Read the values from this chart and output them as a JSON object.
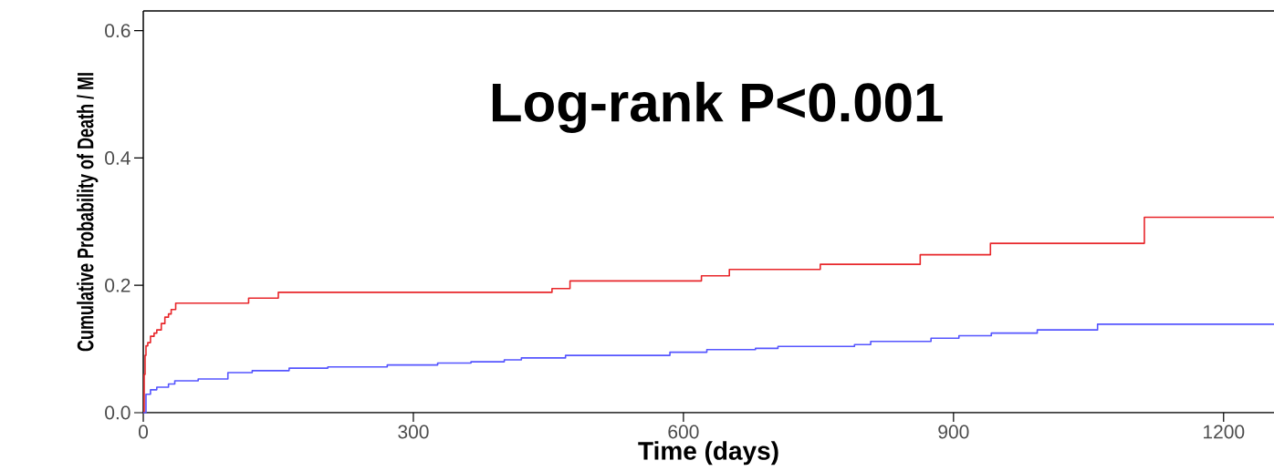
{
  "chart_data": {
    "type": "step",
    "xlabel": "Time (days)",
    "ylabel": "Cumulative Probability of Death / MI",
    "annotations": [
      "Log-rank P<0.001"
    ],
    "xlim": [
      0,
      1256
    ],
    "ylim": [
      0,
      0.631
    ],
    "xticks": [
      0,
      300,
      600,
      900,
      1200
    ],
    "yticks": [
      {
        "value": 0,
        "label": "0.0"
      },
      {
        "value": 0.2,
        "label": "0.2"
      },
      {
        "value": 0.4,
        "label": "0.4"
      },
      {
        "value": 0.6,
        "label": "0.6"
      }
    ],
    "grid": false,
    "series": [
      {
        "color": "#e8262a",
        "x": [
          0,
          1,
          2,
          3,
          5,
          8,
          12,
          15,
          20,
          24,
          28,
          31,
          36,
          117,
          150,
          454,
          474,
          620,
          651,
          752,
          863,
          941,
          1112,
          1256
        ],
        "values": [
          0,
          0.06,
          0.09,
          0.105,
          0.11,
          0.12,
          0.125,
          0.13,
          0.14,
          0.15,
          0.155,
          0.162,
          0.172,
          0.18,
          0.189,
          0.195,
          0.207,
          0.215,
          0.225,
          0.233,
          0.248,
          0.266,
          0.307,
          0.307
        ]
      },
      {
        "color": "#5555ff",
        "x": [
          0,
          3,
          8,
          15,
          28,
          35,
          61,
          94,
          121,
          162,
          205,
          271,
          327,
          364,
          401,
          420,
          469,
          585,
          626,
          680,
          705,
          790,
          808,
          875,
          906,
          942,
          993,
          1060,
          1256
        ],
        "values": [
          0,
          0.029,
          0.036,
          0.04,
          0.045,
          0.05,
          0.053,
          0.063,
          0.066,
          0.07,
          0.072,
          0.075,
          0.078,
          0.08,
          0.083,
          0.086,
          0.09,
          0.095,
          0.099,
          0.101,
          0.104,
          0.107,
          0.112,
          0.117,
          0.121,
          0.125,
          0.13,
          0.139,
          0.139
        ]
      }
    ]
  }
}
